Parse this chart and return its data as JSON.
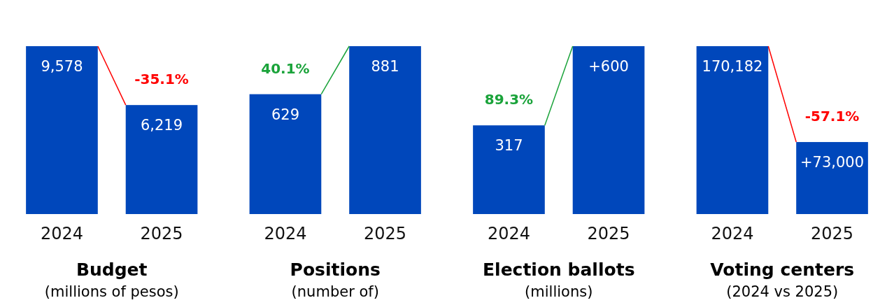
{
  "chart_data": [
    {
      "type": "bar",
      "title": "Budget",
      "subtitle": "(millions of pesos)",
      "categories": [
        "2024",
        "2025"
      ],
      "values": [
        9578,
        6219
      ],
      "value_labels": [
        "9,578",
        "6,219"
      ],
      "color": "#0047bb",
      "annotations": [
        "-35.1%"
      ]
    },
    {
      "type": "bar",
      "title": "Positions",
      "subtitle": "(number of)",
      "categories": [
        "2024",
        "2025"
      ],
      "values": [
        629,
        881
      ],
      "value_labels": [
        "629",
        "881"
      ],
      "color": "#0047bb",
      "annotations": [
        "40.1%"
      ]
    },
    {
      "type": "bar",
      "title": "Election ballots",
      "subtitle": "(millions)",
      "categories": [
        "2024",
        "2025"
      ],
      "values": [
        317,
        600
      ],
      "value_labels": [
        "317",
        "+600"
      ],
      "color": "#0047bb",
      "annotations": [
        "89.3%"
      ]
    },
    {
      "type": "bar",
      "title": "Voting centers",
      "subtitle": "(2024 vs 2025)",
      "categories": [
        "2024",
        "2025"
      ],
      "values": [
        170182,
        73000
      ],
      "value_labels": [
        "170,182",
        "+73,000"
      ],
      "color": "#0047bb",
      "annotations": [
        "-57.1%"
      ]
    }
  ]
}
